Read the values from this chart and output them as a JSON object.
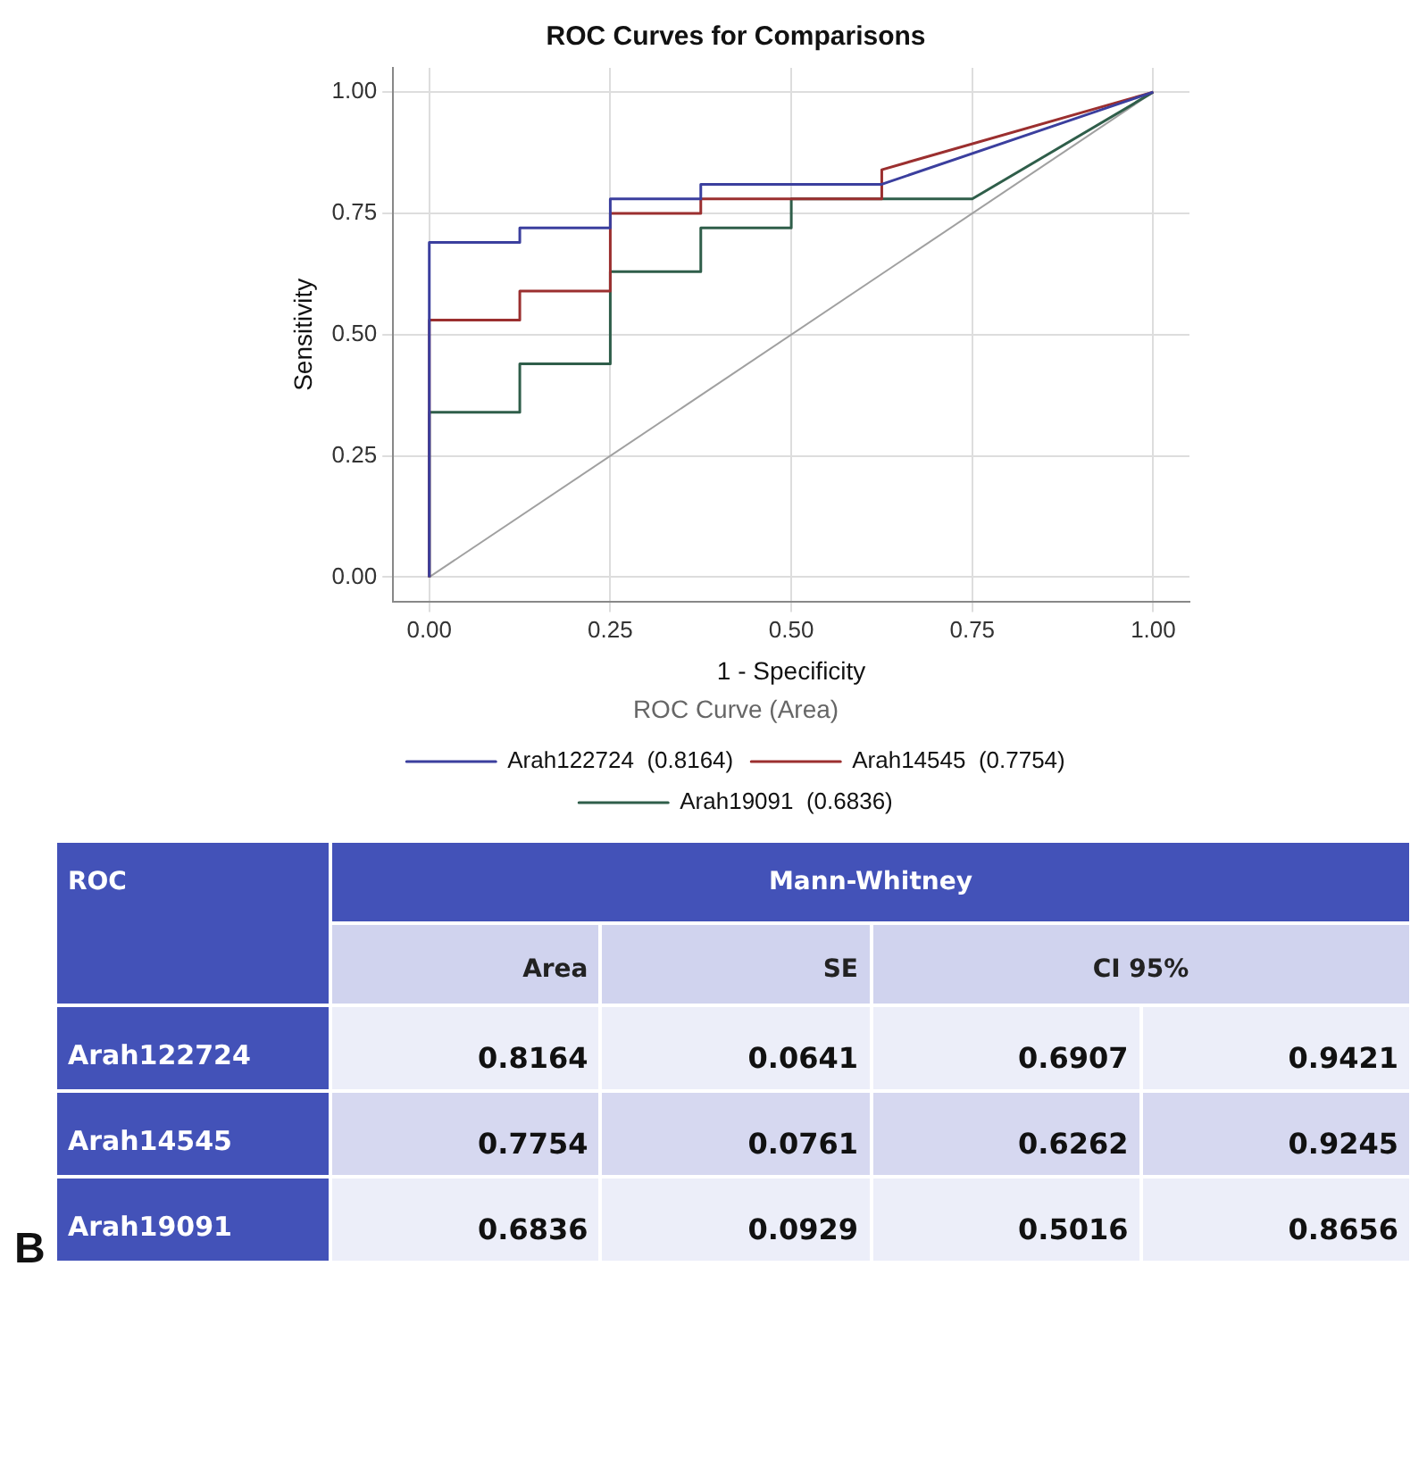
{
  "chart_data": {
    "type": "line",
    "title": "ROC Curves for Comparisons",
    "xlabel": "1 - Specificity",
    "ylabel": "Sensitivity",
    "legend_title": "ROC Curve (Area)",
    "series": [
      {
        "name": "Arah122724  (0.8164)",
        "color": "#3b3f9e",
        "x": [
          0,
          0,
          0.125,
          0.125,
          0.25,
          0.25,
          0.375,
          0.375,
          0.625,
          1
        ],
        "values": [
          0,
          0.69,
          0.69,
          0.72,
          0.72,
          0.78,
          0.78,
          0.81,
          0.81,
          1
        ]
      },
      {
        "name": "Arah14545  (0.7754)",
        "color": "#9b2f2f",
        "x": [
          0,
          0,
          0.125,
          0.125,
          0.25,
          0.25,
          0.375,
          0.375,
          0.625,
          0.625,
          1
        ],
        "values": [
          0,
          0.53,
          0.53,
          0.59,
          0.59,
          0.75,
          0.75,
          0.78,
          0.78,
          0.84,
          1
        ]
      },
      {
        "name": "Arah19091  (0.6836)",
        "color": "#2f5e4a",
        "x": [
          0,
          0,
          0.125,
          0.125,
          0.25,
          0.25,
          0.375,
          0.375,
          0.5,
          0.5,
          0.75,
          1
        ],
        "values": [
          0,
          0.34,
          0.34,
          0.44,
          0.44,
          0.63,
          0.63,
          0.72,
          0.72,
          0.78,
          0.78,
          1
        ]
      },
      {
        "color": "#a0a0a0",
        "x": [
          0,
          1
        ],
        "values": [
          0,
          1
        ]
      }
    ],
    "xlim": [
      -0.05,
      1.05
    ],
    "ylim": [
      -0.05,
      1.05
    ],
    "xticks": [
      {
        "value": 0,
        "label": "0.00"
      },
      {
        "value": 0.25,
        "label": "0.25"
      },
      {
        "value": 0.5,
        "label": "0.50"
      },
      {
        "value": 0.75,
        "label": "0.75"
      },
      {
        "value": 1,
        "label": "1.00"
      }
    ],
    "yticks": [
      {
        "value": 0,
        "label": "0.00"
      },
      {
        "value": 0.25,
        "label": "0.25"
      },
      {
        "value": 0.5,
        "label": "0.50"
      },
      {
        "value": 0.75,
        "label": "0.75"
      },
      {
        "value": 1,
        "label": "1.00"
      }
    ],
    "grid": true,
    "legend": "bottom",
    "marker": "none",
    "line_style": "solid",
    "annotations": [
      "ROC",
      "Mann-Whitney",
      "Area",
      "SE",
      "CI 95%",
      "Arah122724",
      "0.8164",
      "0.0641",
      "0.6907",
      "0.9421",
      "Arah14545",
      "0.7754",
      "0.0761",
      "0.6262",
      "0.9245",
      "Arah19091",
      "0.6836",
      "0.0929",
      "0.5016",
      "0.8656",
      "B"
    ]
  }
}
